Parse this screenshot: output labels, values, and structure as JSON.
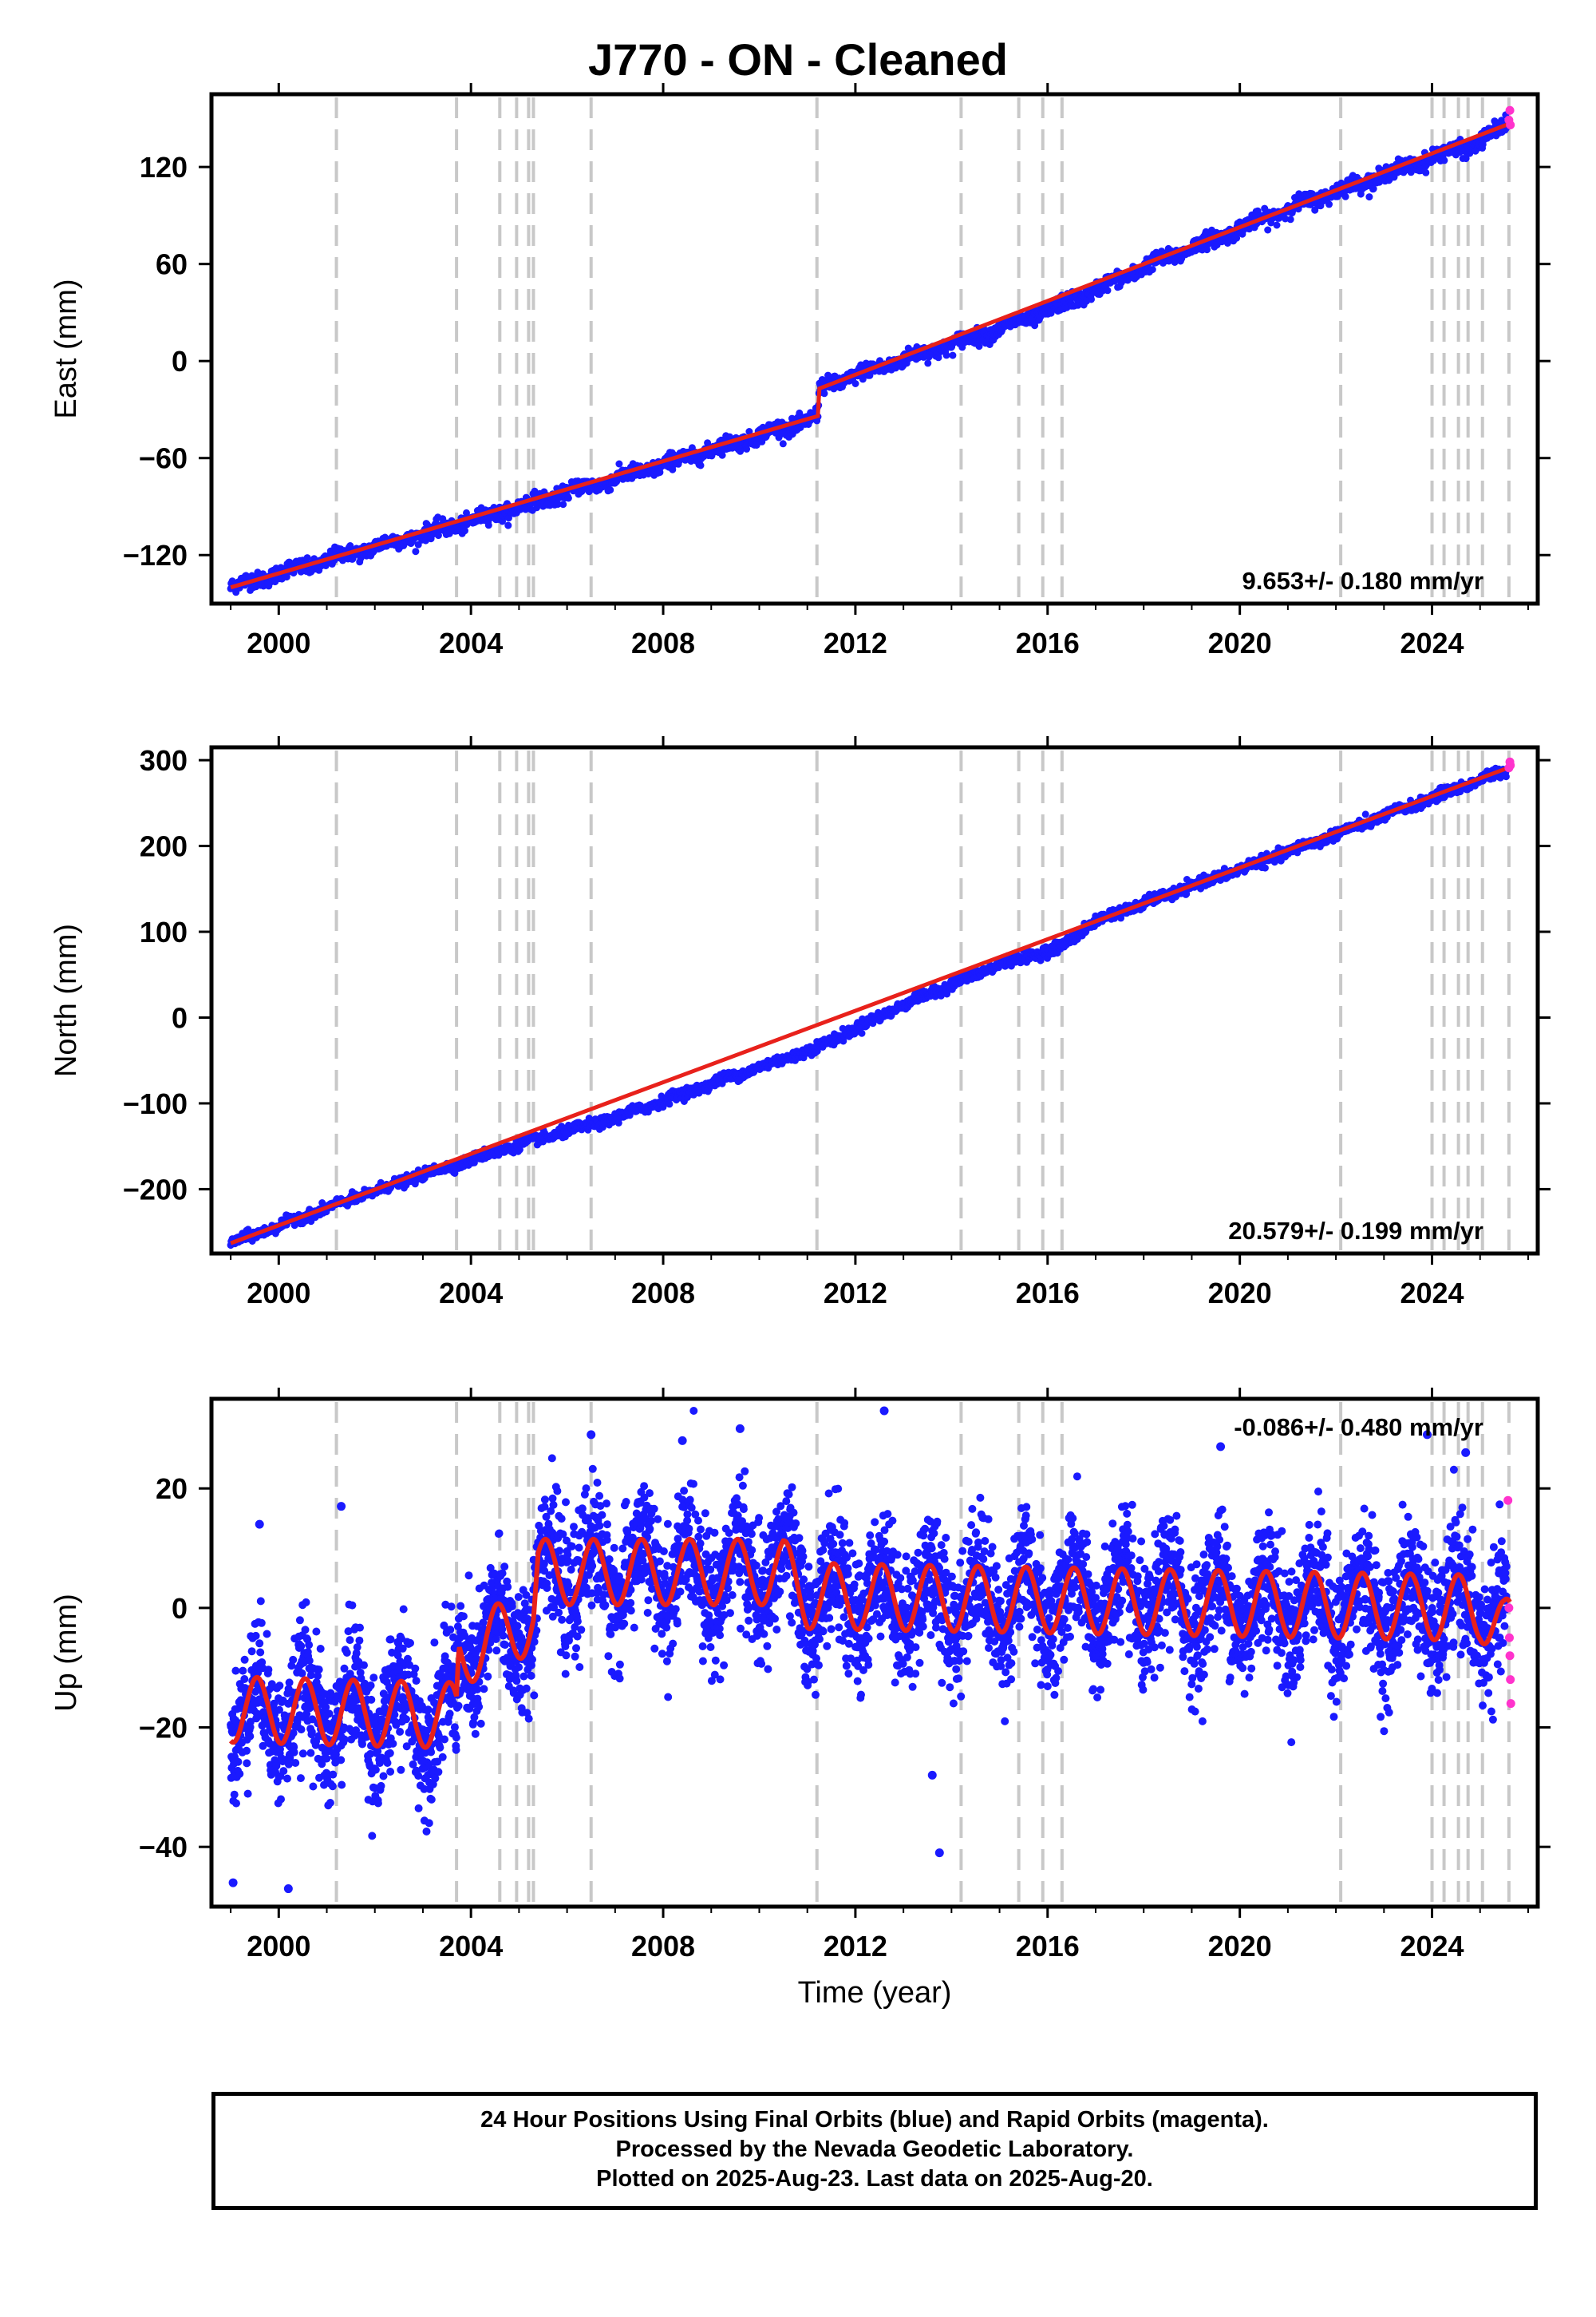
{
  "title": "J770  - ON - Cleaned",
  "footer": {
    "line1": "24 Hour Positions Using Final Orbits (blue) and Rapid Orbits (magenta).",
    "line2": "Processed by the Nevada Geodetic Laboratory.",
    "line3": "Plotted on 2025-Aug-23. Last data on 2025-Aug-20."
  },
  "colors": {
    "final": "#1a1aff",
    "rapid": "#ff33cc",
    "model": "#e8211b",
    "event_line": "#c8c8c8"
  },
  "chart_data": [
    {
      "type": "scatter",
      "ylabel": "East (mm)",
      "xlabel": "",
      "xlim": [
        1998.6,
        2026.2
      ],
      "ylim": [
        -150,
        165
      ],
      "xticks": [
        "2000",
        "2004",
        "2008",
        "2012",
        "2016",
        "2020",
        "2024"
      ],
      "yticks": [
        "120",
        "60",
        "0",
        "−60",
        "−120"
      ],
      "rate_label": "9.653+/- 0.180 mm/yr",
      "rate_position": "bottom-right",
      "series": [
        {
          "role": "final-orbits",
          "x": [
            1999.0,
            2000.0,
            2001.0,
            2001.2,
            2002.0,
            2003.0,
            2004.0,
            2005.0,
            2006.0,
            2007.0,
            2008.0,
            2009.0,
            2010.0,
            2011.0,
            2011.22,
            2011.25,
            2012.0,
            2013.0,
            2014.0,
            2015.0,
            2016.0,
            2017.0,
            2018.0,
            2019.0,
            2020.0,
            2021.0,
            2022.0,
            2023.0,
            2024.0,
            2025.0,
            2025.5
          ],
          "y": [
            -140,
            -131,
            -124,
            -121,
            -115,
            -107,
            -99,
            -90,
            -81,
            -73,
            -64,
            -55,
            -46,
            -37,
            -34,
            -17,
            -9,
            1,
            10,
            20,
            31,
            44,
            58,
            70,
            82,
            94,
            105,
            115,
            126,
            135,
            146
          ]
        },
        {
          "role": "rapid-orbits",
          "x": [
            2025.6,
            2025.62,
            2025.63
          ],
          "y": [
            149,
            155,
            146
          ]
        },
        {
          "role": "model",
          "x": [
            1999.0,
            2011.22,
            2011.25,
            2025.63
          ],
          "y": [
            -140,
            -34,
            -17,
            147
          ]
        }
      ],
      "events": [
        2001.2,
        2003.7,
        2004.6,
        2004.95,
        2005.2,
        2005.3,
        2006.5,
        2011.2,
        2014.2,
        2015.4,
        2015.9,
        2016.3,
        2022.1,
        2024.0,
        2024.25,
        2024.55,
        2024.75,
        2025.05,
        2025.6
      ]
    },
    {
      "type": "scatter",
      "ylabel": "North (mm)",
      "xlabel": "",
      "xlim": [
        1998.6,
        2026.2
      ],
      "ylim": [
        -275,
        315
      ],
      "xticks": [
        "2000",
        "2004",
        "2008",
        "2012",
        "2016",
        "2020",
        "2024"
      ],
      "yticks": [
        "300",
        "200",
        "100",
        "0",
        "−100",
        "−200"
      ],
      "rate_label": "20.579+/- 0.199 mm/yr",
      "rate_position": "bottom-right",
      "series": [
        {
          "role": "final-orbits",
          "x": [
            1999.0,
            2001.0,
            2003.0,
            2005.0,
            2007.0,
            2009.0,
            2011.2,
            2013.0,
            2015.0,
            2016.3,
            2017.0,
            2019.0,
            2021.0,
            2023.0,
            2025.0,
            2025.5
          ],
          "y": [
            -263,
            -222,
            -183,
            -148,
            -117,
            -77,
            -35,
            15,
            62,
            83,
            113,
            153,
            193,
            235,
            277,
            287
          ]
        },
        {
          "role": "rapid-orbits",
          "x": [
            2025.6,
            2025.62,
            2025.63
          ],
          "y": [
            291,
            298,
            294
          ]
        },
        {
          "role": "model",
          "x": [
            1999.0,
            2025.63
          ],
          "y": [
            -263,
            292
          ]
        }
      ],
      "events": [
        2001.2,
        2003.7,
        2004.6,
        2004.95,
        2005.2,
        2005.3,
        2006.5,
        2011.2,
        2014.2,
        2015.4,
        2015.9,
        2016.3,
        2022.1,
        2024.0,
        2024.25,
        2024.55,
        2024.75,
        2025.05,
        2025.6
      ]
    },
    {
      "type": "scatter",
      "ylabel": "Up (mm)",
      "xlabel": "Time (year)",
      "xlim": [
        1998.6,
        2026.2
      ],
      "ylim": [
        -50,
        35
      ],
      "xticks": [
        "2000",
        "2004",
        "2008",
        "2012",
        "2016",
        "2020",
        "2024"
      ],
      "yticks": [
        "20",
        "0",
        "−20",
        "−40"
      ],
      "rate_label": "-0.086+/- 0.480 mm/yr",
      "rate_position": "top-right",
      "seasonal_amplitude_mm": 5.5,
      "series": [
        {
          "role": "final-orbits-mean",
          "x": [
            1999.0,
            2003.7,
            2003.75,
            2004.5,
            2005.3,
            2005.4,
            2010.5,
            2011.0,
            2025.0,
            2025.5
          ],
          "y": [
            -17,
            -18,
            -8,
            -5,
            -2,
            6,
            6,
            2,
            0,
            -4
          ]
        },
        {
          "role": "rapid-orbits",
          "x": [
            2025.58,
            2025.6,
            2025.61,
            2025.62,
            2025.63,
            2025.64
          ],
          "y": [
            18,
            0,
            -5,
            -8,
            -12,
            -16
          ]
        },
        {
          "role": "outliers",
          "x": [
            1999.05,
            1999.6,
            2000.2,
            2001.3,
            2006.5,
            2008.4,
            2009.6,
            2012.6,
            2013.6,
            2013.75,
            2019.6,
            2023.9,
            2024.7
          ],
          "y": [
            -46,
            14,
            -47,
            17,
            29,
            28,
            30,
            33,
            -28,
            -41,
            27,
            29,
            26
          ]
        }
      ],
      "events": [
        2001.2,
        2003.7,
        2004.6,
        2004.95,
        2005.2,
        2005.3,
        2006.5,
        2011.2,
        2014.2,
        2015.4,
        2015.9,
        2016.3,
        2022.1,
        2024.0,
        2024.25,
        2024.55,
        2024.75,
        2025.05,
        2025.6
      ]
    }
  ]
}
